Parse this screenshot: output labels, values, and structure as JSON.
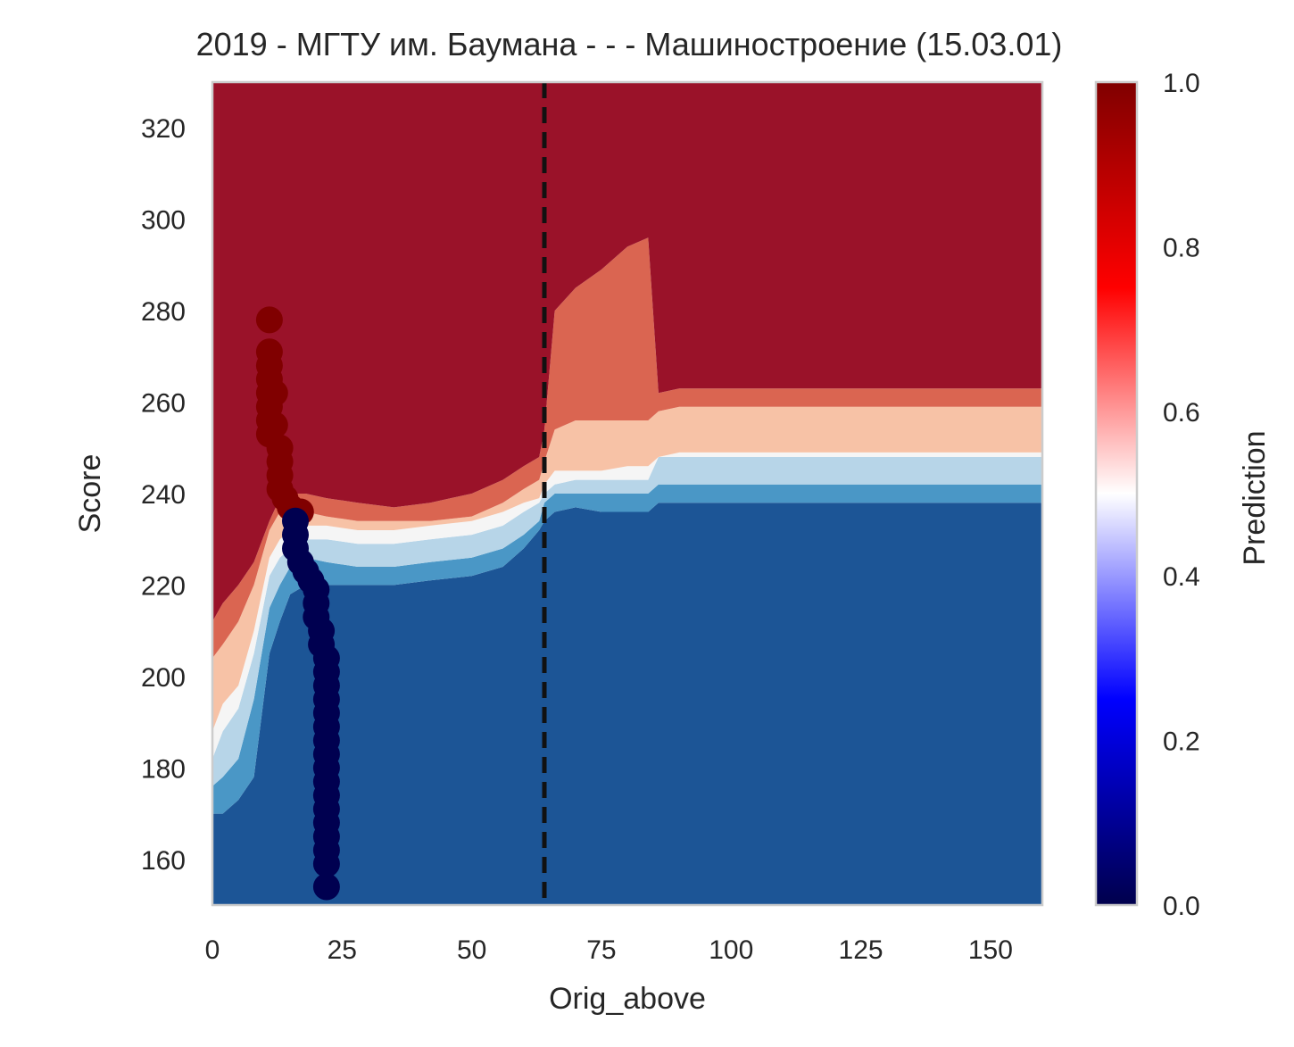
{
  "chart_data": {
    "type": "scatter",
    "title": "2019 - МГТУ им. Баумана - - - Машиностроение (15.03.01)",
    "xlabel": "Orig_above",
    "ylabel": "Score",
    "xlim": [
      0,
      160
    ],
    "ylim": [
      150,
      330
    ],
    "xticks": [
      "0",
      "25",
      "50",
      "75",
      "100",
      "125",
      "150"
    ],
    "yticks": [
      "160",
      "180",
      "200",
      "220",
      "240",
      "260",
      "280",
      "300",
      "320"
    ],
    "grid": false,
    "threshold_line": {
      "x": 64,
      "style": "dashed",
      "color": "#111111"
    },
    "background": {
      "description_type": "filled-contour",
      "levels": [
        {
          "label": "low",
          "color": "#1c5596"
        },
        {
          "label": "mid-low",
          "color": "#4a97c6"
        },
        {
          "label": "light-blue",
          "color": "#b7d5e8"
        },
        {
          "label": "neutral",
          "color": "#f5f5f5"
        },
        {
          "label": "light-red",
          "color": "#f7c2a6"
        },
        {
          "label": "mid-high",
          "color": "#da6551"
        },
        {
          "label": "high",
          "color": "#9a1229"
        }
      ],
      "boundaries": {
        "x": [
          0,
          2,
          5,
          8,
          11,
          13,
          15,
          18,
          22,
          28,
          35,
          42,
          50,
          56,
          60,
          63,
          64,
          66,
          70,
          75,
          80,
          84,
          86,
          90,
          100,
          120,
          140,
          160
        ],
        "b1": [
          170,
          170,
          173,
          178,
          205,
          212,
          218,
          220,
          220,
          220,
          220,
          221,
          222,
          224,
          228,
          232,
          234,
          236,
          237,
          236,
          236,
          236,
          238,
          238,
          238,
          238,
          238,
          238
        ],
        "b2": [
          176,
          178,
          182,
          195,
          215,
          220,
          224,
          226,
          225,
          224,
          224,
          225,
          226,
          228,
          231,
          234,
          238,
          240,
          240,
          240,
          240,
          240,
          242,
          242,
          242,
          242,
          242,
          242
        ],
        "b3": [
          182,
          188,
          193,
          205,
          222,
          226,
          228,
          230,
          230,
          229,
          229,
          230,
          231,
          233,
          236,
          238,
          240,
          242,
          243,
          243,
          243,
          243,
          248,
          248,
          248,
          248,
          248,
          248
        ],
        "b4": [
          188,
          194,
          198,
          210,
          226,
          230,
          232,
          233,
          233,
          232,
          232,
          233,
          234,
          236,
          238,
          239,
          242,
          245,
          245,
          245,
          246,
          246,
          248,
          249,
          249,
          249,
          249,
          249
        ],
        "b5": [
          204,
          207,
          212,
          220,
          232,
          236,
          237,
          236,
          235,
          234,
          234,
          234,
          235,
          238,
          241,
          243,
          247,
          254,
          256,
          256,
          256,
          256,
          258,
          259,
          259,
          259,
          259,
          259
        ],
        "b6": [
          212,
          216,
          220,
          225,
          234,
          239,
          240,
          240,
          239,
          238,
          237,
          238,
          240,
          243,
          246,
          248,
          254,
          280,
          285,
          289,
          294,
          296,
          262,
          263,
          263,
          263,
          263,
          263
        ]
      }
    },
    "colorbar": {
      "label": "Prediction",
      "range": [
        0,
        1
      ],
      "ticks": [
        "0.0",
        "0.2",
        "0.4",
        "0.6",
        "0.8",
        "1.0"
      ],
      "colormap": "seismic"
    },
    "series": [
      {
        "class": "admitted",
        "value": 1,
        "color": "#800000",
        "points": [
          [
            11,
            278
          ],
          [
            11,
            271
          ],
          [
            11,
            268
          ],
          [
            11,
            265
          ],
          [
            11,
            262
          ],
          [
            11,
            259
          ],
          [
            11,
            256
          ],
          [
            11,
            253
          ],
          [
            12,
            262
          ],
          [
            12,
            255
          ],
          [
            13,
            250
          ],
          [
            13,
            247
          ],
          [
            13,
            244
          ],
          [
            13,
            241
          ],
          [
            14,
            239
          ],
          [
            15,
            237
          ],
          [
            17,
            236
          ]
        ]
      },
      {
        "class": "not_admitted",
        "value": 0,
        "color": "#000050",
        "points": [
          [
            16,
            234
          ],
          [
            16,
            231
          ],
          [
            16,
            228
          ],
          [
            17,
            225
          ],
          [
            18,
            223
          ],
          [
            19,
            221
          ],
          [
            20,
            219
          ],
          [
            20,
            216
          ],
          [
            20,
            213
          ],
          [
            21,
            210
          ],
          [
            21,
            207
          ],
          [
            22,
            204
          ],
          [
            22,
            201
          ],
          [
            22,
            198
          ],
          [
            22,
            195
          ],
          [
            22,
            192
          ],
          [
            22,
            189
          ],
          [
            22,
            186
          ],
          [
            22,
            183
          ],
          [
            22,
            180
          ],
          [
            22,
            177
          ],
          [
            22,
            174
          ],
          [
            22,
            171
          ],
          [
            22,
            168
          ],
          [
            22,
            165
          ],
          [
            22,
            162
          ],
          [
            22,
            159
          ],
          [
            22,
            154
          ]
        ]
      }
    ]
  }
}
